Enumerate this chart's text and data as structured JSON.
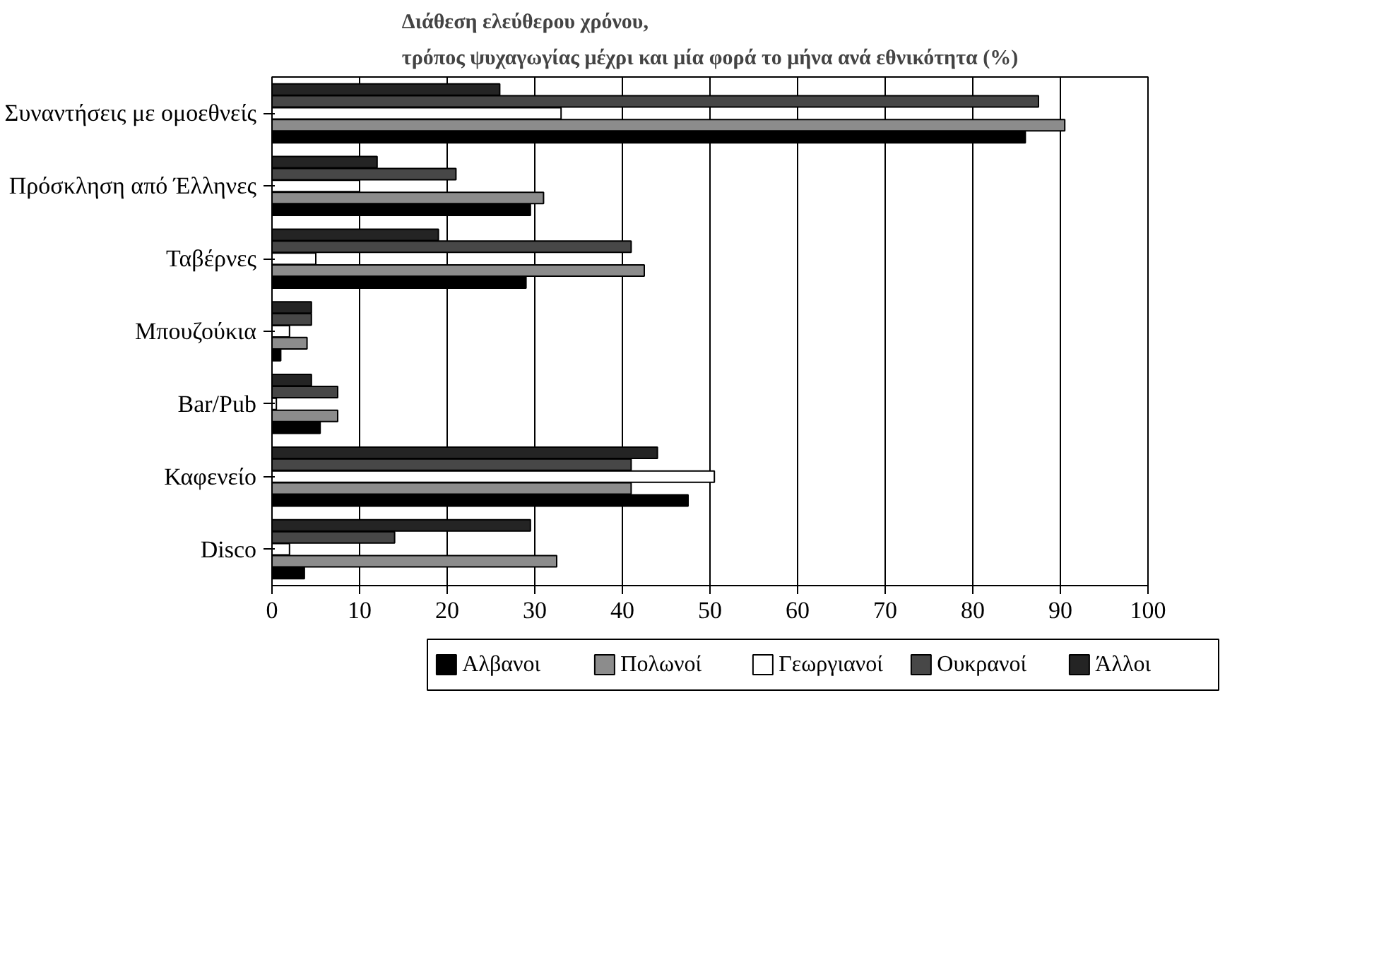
{
  "chart_data": {
    "type": "bar",
    "orientation": "horizontal",
    "title": "Διάθεση ελεύθερου χρόνου,\nτρόπος ψυχαγωγίας μέχρι και μία φορά το μήνα ανά εθνικότητα (%)",
    "categories": [
      "Συναντήσεις με ομοεθνείς",
      "Πρόσκληση από Έλληνες",
      "Ταβέρνες",
      "Μπουζούκια",
      "Bar/Pub",
      "Καφενείο",
      "Disco"
    ],
    "series": [
      {
        "name": "Αλβανοι",
        "color": "#000000",
        "values": [
          86,
          29.5,
          29,
          1,
          5.5,
          47.5,
          3.7
        ]
      },
      {
        "name": "Πολωνοί",
        "color": "#8c8c8c",
        "values": [
          90.5,
          31,
          42.5,
          4,
          7.5,
          41,
          32.5
        ]
      },
      {
        "name": "Γεωργιανοί",
        "color": "#ffffff",
        "values": [
          33,
          10,
          5,
          2,
          0.5,
          50.5,
          2
        ]
      },
      {
        "name": "Ουκρανοί",
        "color": "#474747",
        "values": [
          87.5,
          21,
          41,
          4.5,
          7.5,
          41,
          14
        ]
      },
      {
        "name": "Άλλοι",
        "color": "#242424",
        "values": [
          26,
          12,
          19,
          4.5,
          4.5,
          44,
          29.5
        ]
      }
    ],
    "xlim": [
      0,
      100
    ],
    "xticks": [
      0,
      10,
      20,
      30,
      40,
      50,
      60,
      70,
      80,
      90,
      100
    ],
    "grid": "x",
    "legend": "bottom"
  }
}
